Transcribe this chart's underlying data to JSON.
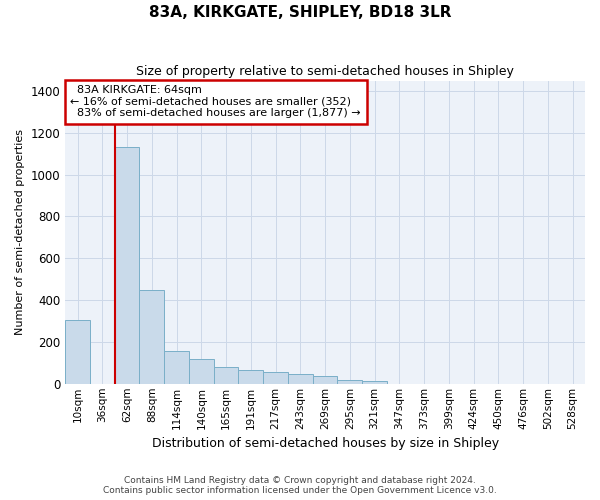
{
  "title": "83A, KIRKGATE, SHIPLEY, BD18 3LR",
  "subtitle": "Size of property relative to semi-detached houses in Shipley",
  "xlabel": "Distribution of semi-detached houses by size in Shipley",
  "ylabel": "Number of semi-detached properties",
  "categories": [
    "10sqm",
    "36sqm",
    "62sqm",
    "88sqm",
    "114sqm",
    "140sqm",
    "165sqm",
    "191sqm",
    "217sqm",
    "243sqm",
    "269sqm",
    "295sqm",
    "321sqm",
    "347sqm",
    "373sqm",
    "399sqm",
    "424sqm",
    "450sqm",
    "476sqm",
    "502sqm",
    "528sqm"
  ],
  "values": [
    305,
    0,
    1130,
    450,
    155,
    120,
    80,
    65,
    55,
    45,
    35,
    20,
    15,
    0,
    0,
    0,
    0,
    0,
    0,
    0,
    0
  ],
  "bar_color": "#c9daea",
  "bar_edge_color": "#7aafc8",
  "vline_x": 1.5,
  "vline_color": "#cc0000",
  "property_label": "83A KIRKGATE: 64sqm",
  "smaller_pct": "16%",
  "smaller_count": "352",
  "larger_pct": "83%",
  "larger_count": "1,877",
  "annotation_box_color": "#cc0000",
  "grid_color": "#cdd8e8",
  "background_color": "#edf2f9",
  "footer_line1": "Contains HM Land Registry data © Crown copyright and database right 2024.",
  "footer_line2": "Contains public sector information licensed under the Open Government Licence v3.0.",
  "ylim": [
    0,
    1450
  ],
  "yticks": [
    0,
    200,
    400,
    600,
    800,
    1000,
    1200,
    1400
  ]
}
